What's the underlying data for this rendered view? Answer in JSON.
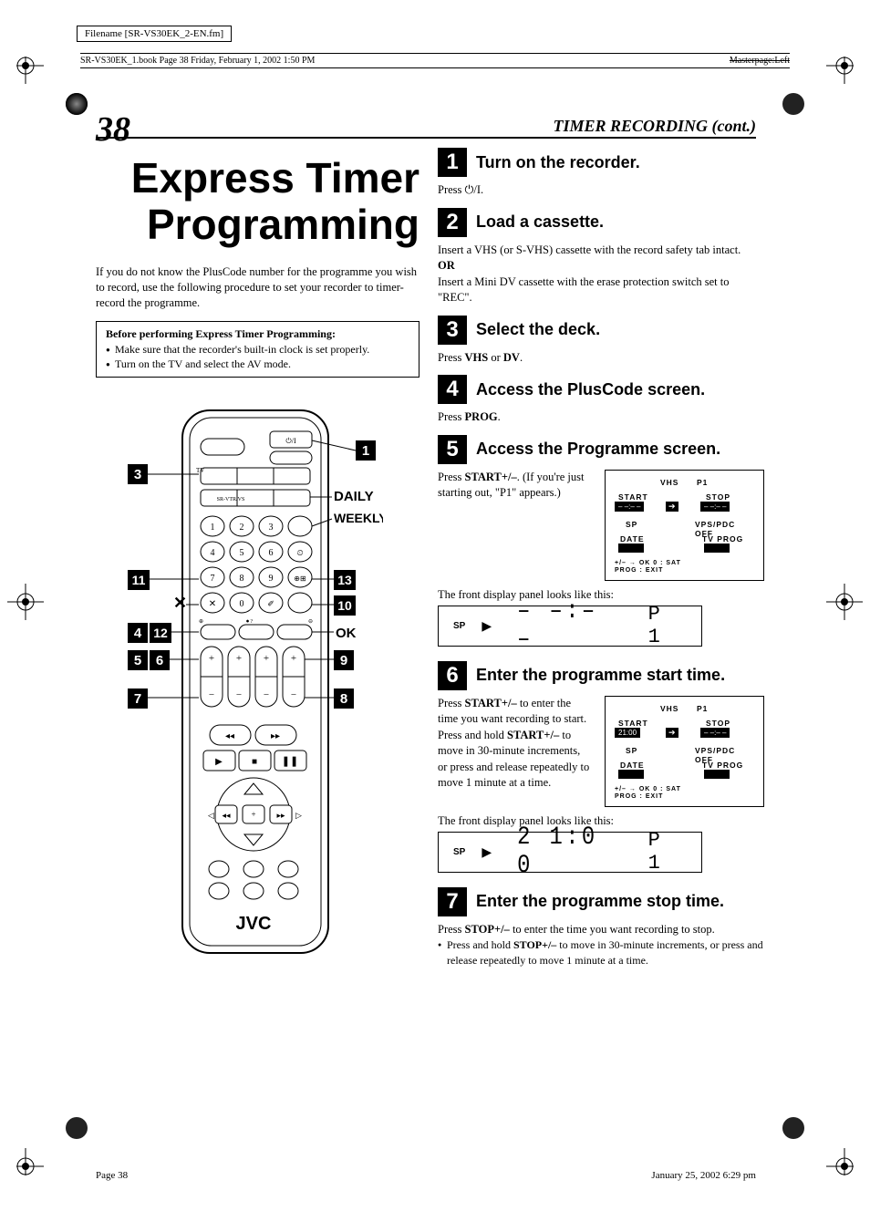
{
  "meta": {
    "filename": "Filename [SR-VS30EK_2-EN.fm]",
    "book_ref": "SR-VS30EK_1.book  Page 38  Friday, February 1, 2002  1:50 PM",
    "masterpage": "Masterpage:Left",
    "footer_left": "Page 38",
    "footer_right": "January 25, 2002  6:29 pm"
  },
  "page": {
    "number": "38",
    "section": "TIMER RECORDING (cont.)",
    "title": "Express Timer Programming",
    "intro": "If you do not know the PlusCode number for the programme you wish to record, use the following procedure to set your recorder to timer-record the programme.",
    "before_title": "Before performing Express Timer Programming:",
    "before_items": [
      "Make sure that the recorder's built-in clock is set properly.",
      "Turn on the TV and select the AV mode."
    ]
  },
  "remote_labels": {
    "l3": "3",
    "l1": "1",
    "daily": "DAILY",
    "weekly": "WEEKLY",
    "l11": "11",
    "l13": "13",
    "l10": "10",
    "x": "✕",
    "ok": "OK",
    "l4": "4",
    "l12": "12",
    "l5": "5",
    "l6": "6",
    "l9": "9",
    "l7": "7",
    "l8": "8",
    "brand": "JVC"
  },
  "steps": [
    {
      "n": "1",
      "title": "Turn on the recorder.",
      "body": "Press ⏻/I."
    },
    {
      "n": "2",
      "title": "Load a cassette.",
      "body_html": "Insert a VHS (or S-VHS) cassette with the record safety tab intact.<br><b>OR</b><br>Insert a Mini DV cassette with the erase protection switch set to \"REC\"."
    },
    {
      "n": "3",
      "title": "Select the deck.",
      "body_html": "Press <b>VHS</b> or <b>DV</b>."
    },
    {
      "n": "4",
      "title": "Access the PlusCode screen.",
      "body_html": "Press <b>PROG</b>."
    },
    {
      "n": "5",
      "title": "Access the Programme screen.",
      "row_text": "Press <b>START+/–</b>. (If you're just starting out, \"P1\" appears.)",
      "osd": {
        "mode": "VHS",
        "prog": "P1",
        "start": "– –:– –",
        "stop": "– –:– –",
        "speed": "SP",
        "vps": "VPS/PDC OFF",
        "date": "DATE",
        "tvprog": "TV PROG",
        "hint": "+/– → OK    0 : SAT",
        "hint2": "PROG : EXIT"
      },
      "display_caption": "The front display panel looks like this:",
      "lcd": {
        "sp": "SP",
        "seg": "– –:– –",
        "pgm": "P 1"
      }
    },
    {
      "n": "6",
      "title": "Enter the programme start time.",
      "row_text": "Press <b>START+/–</b> to enter the time you want recording to start.",
      "bullet": "Press and hold <b>START+/–</b> to move in 30-minute increments, or press and release repeatedly to move 1 minute at a time.",
      "osd": {
        "mode": "VHS",
        "prog": "P1",
        "start": "21:00",
        "stop": "– –:– –",
        "speed": "SP",
        "vps": "VPS/PDC OFF",
        "date": "DATE",
        "tvprog": "TV PROG",
        "hint": "+/– → OK    0 : SAT",
        "hint2": "PROG : EXIT"
      },
      "display_caption": "The front display panel looks like this:",
      "lcd": {
        "sp": "SP",
        "seg": "2 1:0 0",
        "pgm": "P 1"
      }
    },
    {
      "n": "7",
      "title": "Enter the programme stop time.",
      "body_html": "Press <b>STOP+/–</b> to enter the time you want recording to stop.",
      "bullet": "Press and hold <b>STOP+/–</b> to move in 30-minute increments, or press and release repeatedly to move 1 minute at a time."
    }
  ]
}
